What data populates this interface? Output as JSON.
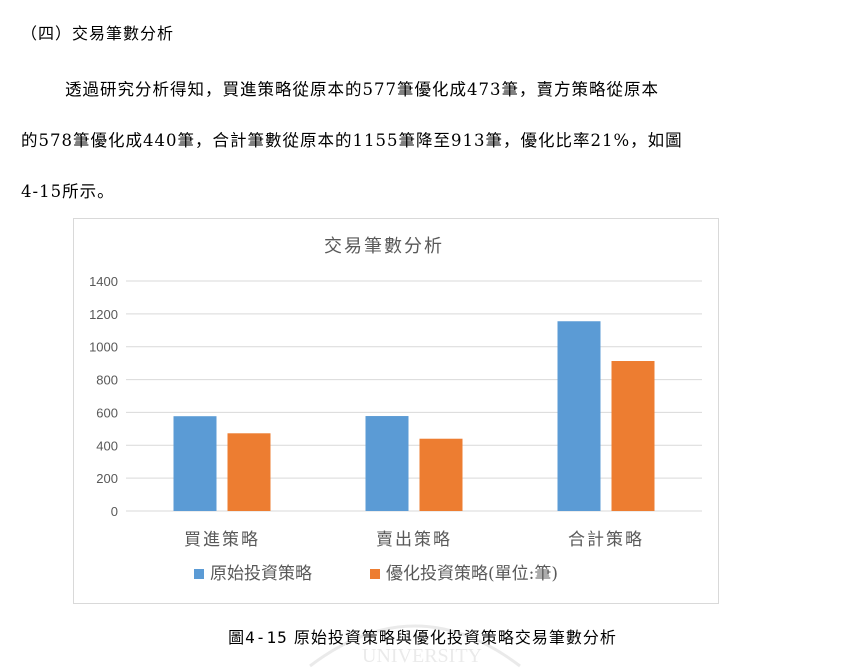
{
  "section": {
    "heading": "（四）交易筆數分析"
  },
  "paragraph": {
    "line1": "透過研究分析得知，買進策略從原本的577筆優化成473筆，賣方策略從原本",
    "line2": "的578筆優化成440筆，合計筆數從原本的1155筆降至913筆，優化比率21%，如圖",
    "line3": "4-15所示。"
  },
  "chart_data": {
    "type": "bar",
    "title": "交易筆數分析",
    "categories": [
      "買進策略",
      "賣出策略",
      "合計策略"
    ],
    "series": [
      {
        "name": "原始投資策略",
        "values": [
          577,
          578,
          1155
        ],
        "color": "#5b9bd5"
      },
      {
        "name": "優化投資策略(單位:筆)",
        "values": [
          473,
          440,
          913
        ],
        "color": "#ed7d31"
      }
    ],
    "ylim": [
      0,
      1400
    ],
    "yticks": [
      0,
      200,
      400,
      600,
      800,
      1000,
      1200,
      1400
    ],
    "grid": true,
    "legend_position": "bottom"
  },
  "caption": {
    "number": "圖4-15",
    "text": "原始投資策略與優化投資策略交易筆數分析"
  },
  "watermark": {
    "text": "UNIVERSITY"
  }
}
